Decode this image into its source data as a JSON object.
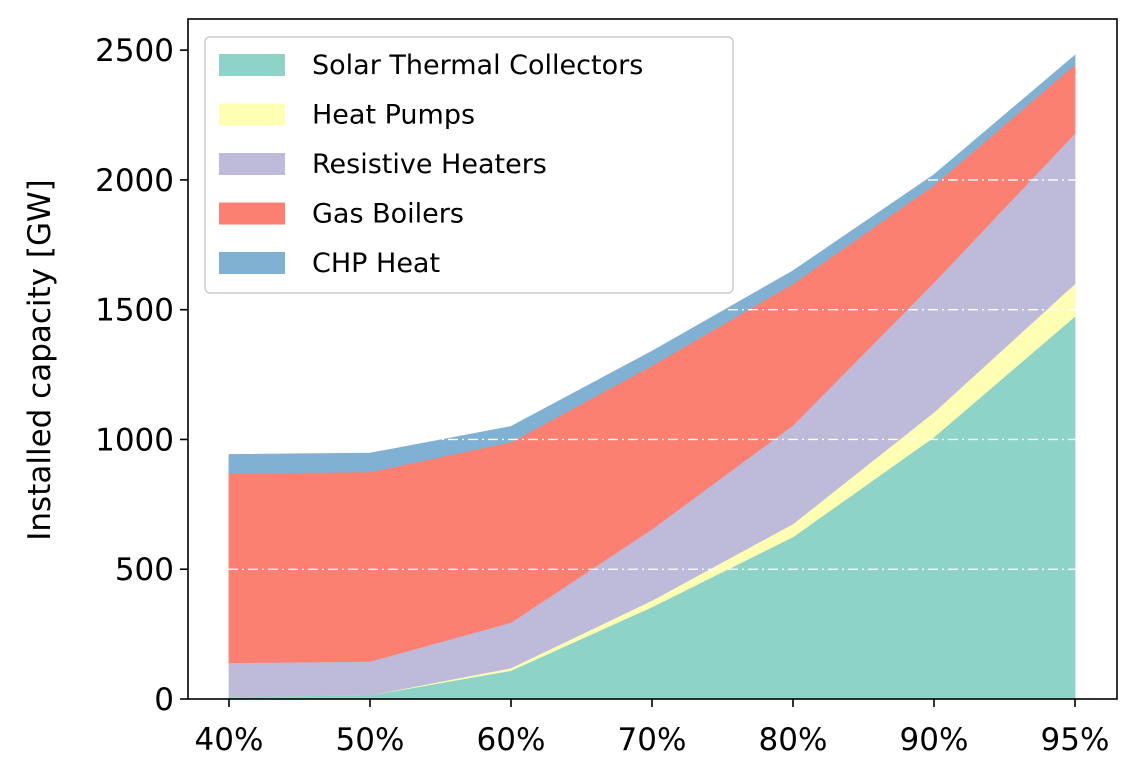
{
  "chart_data": {
    "type": "area",
    "stacked": true,
    "categories": [
      "40%",
      "50%",
      "60%",
      "70%",
      "80%",
      "90%",
      "95%"
    ],
    "ylabel": "Installed capacity [GW]",
    "ylim": [
      0,
      2620
    ],
    "yticks": [
      0,
      500,
      1000,
      1500,
      2000,
      2500
    ],
    "grid": "horizontal dash-dot, white",
    "legend_position": "upper-left",
    "series": [
      {
        "name": "Solar Thermal Collectors",
        "color": "#8dd3c7",
        "values": [
          10,
          15,
          110,
          355,
          625,
          1010,
          1475
        ]
      },
      {
        "name": "Heat Pumps",
        "color": "#ffffb3",
        "values": [
          0,
          0,
          10,
          25,
          50,
          95,
          125
        ]
      },
      {
        "name": "Resistive Heaters",
        "color": "#bebada",
        "values": [
          130,
          130,
          175,
          275,
          380,
          500,
          580
        ]
      },
      {
        "name": "Gas Boilers",
        "color": "#fb8072",
        "values": [
          730,
          730,
          695,
          630,
          545,
          375,
          265
        ]
      },
      {
        "name": "CHP Heat",
        "color": "#80b1d3",
        "values": [
          72,
          72,
          60,
          55,
          50,
          40,
          35
        ]
      }
    ]
  }
}
